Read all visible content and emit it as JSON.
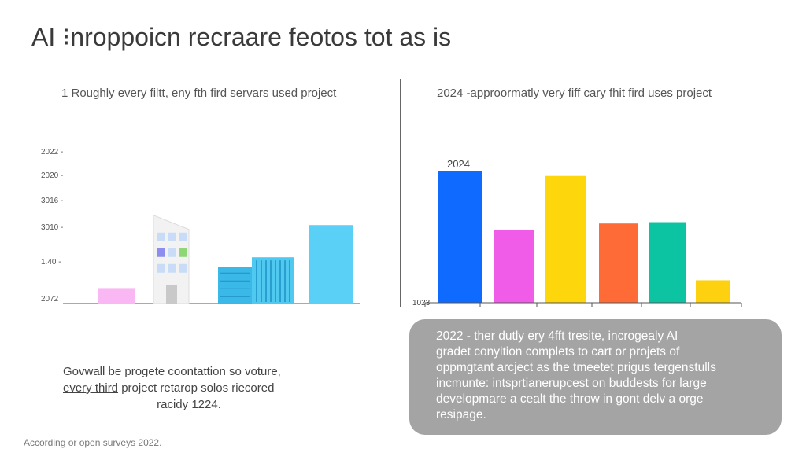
{
  "title": "AI ⁝nroppoicn recraare feotos tot as is",
  "chart_data": [
    {
      "type": "bar",
      "title": "1 Roughly every filtt, eny fth fird servars used project",
      "y_ticks": [
        "2022 -",
        "2020 -",
        "3016 -",
        "3010 -",
        "1.40 -",
        "2072"
      ],
      "bars": [
        {
          "name": "pink-bar",
          "value": 1.1,
          "color": "#f9b8f3"
        },
        {
          "name": "tower-building",
          "value": 6.3,
          "color": "#e6e6e6"
        },
        {
          "name": "blue-building",
          "value": 3.3,
          "color": "#4fc9ef"
        },
        {
          "name": "sky-blue-bar",
          "value": 5.6,
          "color": "#5bd0f7"
        }
      ],
      "ylim": [
        0,
        11
      ]
    },
    {
      "type": "bar",
      "title": "2024 -approormatly very fiff cary fhit fird uses project",
      "top_label": "2024",
      "baseline_label": "1023",
      "categories": [
        "",
        "",
        "",
        "",
        "",
        ""
      ],
      "values": [
        100,
        55,
        96,
        60,
        61,
        17
      ],
      "colors": [
        "#0f6bff",
        "#f05ce8",
        "#fdd60c",
        "#ff6b36",
        "#0cc3a2",
        "#fdd10f"
      ],
      "ylim": [
        0,
        100
      ]
    }
  ],
  "note": {
    "line1": "Govwall be progete coontattion so voture,",
    "underlined": "every third",
    "line2_rest": " project retarop solos riecored",
    "line3": "racidy 1224."
  },
  "callout": {
    "lines": [
      "2022 - ther dutly ery 4fft tresite, incrogealy AI",
      "gradet conyition complets to cart or projets of",
      "oppmgtant arcject as the tmeetet prigus tergenstulls",
      "incmunte: intsprtianerupcest on buddests for large",
      "developmare a cealt the throw in gont delv a orge",
      "resipage."
    ]
  },
  "source": "According or open surveys 2022."
}
